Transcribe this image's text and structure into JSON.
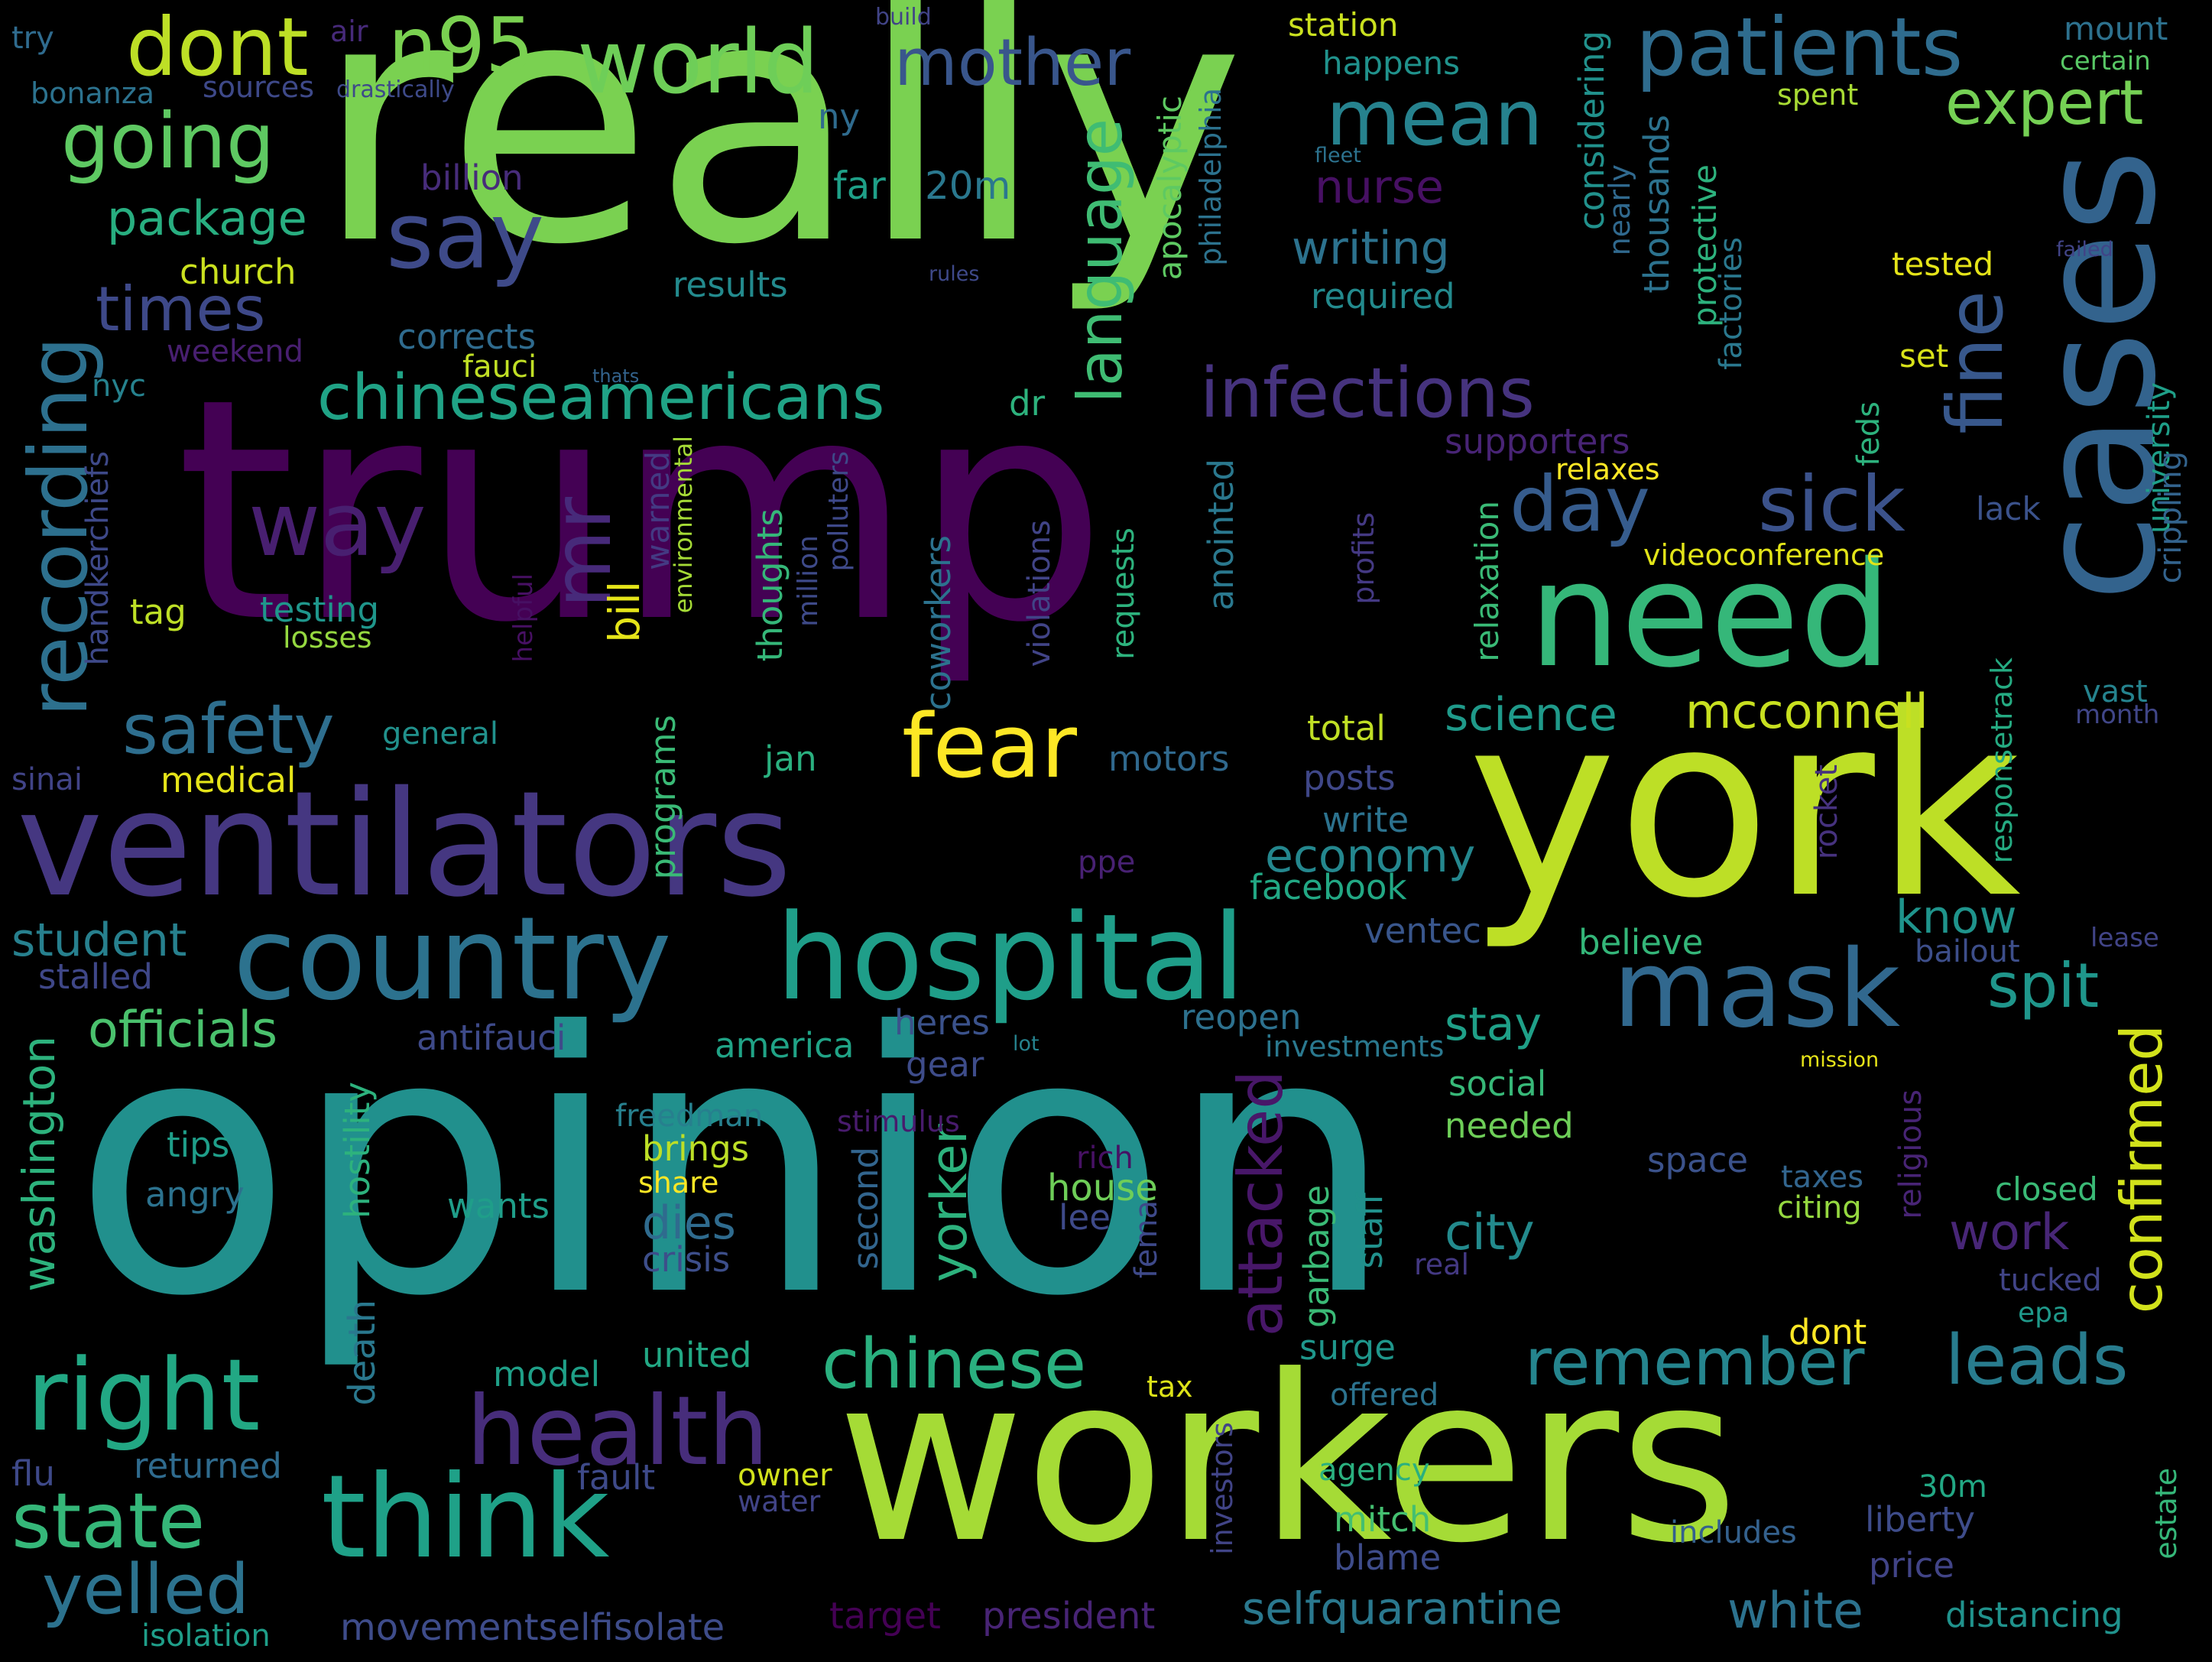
{
  "words": [
    {
      "text": "really",
      "color": "#7ad151"
    },
    {
      "text": "trump",
      "color": "#440154"
    },
    {
      "text": "opinion",
      "color": "#21908d"
    },
    {
      "text": "york",
      "color": "#bddf26"
    },
    {
      "text": "workers",
      "color": "#a5db36"
    },
    {
      "text": "ventilators",
      "color": "#453781"
    },
    {
      "text": "cases",
      "color": "#33638d"
    },
    {
      "text": "need",
      "color": "#35b779"
    },
    {
      "text": "country",
      "color": "#2c728e"
    },
    {
      "text": "hospital",
      "color": "#1f9e89"
    },
    {
      "text": "think",
      "color": "#1fa188"
    },
    {
      "text": "mask",
      "color": "#31688e"
    },
    {
      "text": "right",
      "color": "#22a884"
    },
    {
      "text": "health",
      "color": "#472d7b"
    },
    {
      "text": "recording",
      "color": "#2d708e"
    },
    {
      "text": "world",
      "color": "#6ece58"
    },
    {
      "text": "patients",
      "color": "#2f6c8e"
    },
    {
      "text": "going",
      "color": "#5ec962"
    },
    {
      "text": "dont",
      "color": "#bddf26"
    },
    {
      "text": "n95",
      "color": "#7ad151"
    },
    {
      "text": "fear",
      "color": "#fde725"
    },
    {
      "text": "state",
      "color": "#35b779"
    },
    {
      "text": "chineseamericans",
      "color": "#20a386"
    },
    {
      "text": "infections",
      "color": "#46337e"
    },
    {
      "text": "say",
      "color": "#3e4a89"
    },
    {
      "text": "way",
      "color": "#481f70"
    },
    {
      "text": "safety",
      "color": "#2e6e8e"
    },
    {
      "text": "mr",
      "color": "#472a7a"
    },
    {
      "text": "day",
      "color": "#365c8d"
    },
    {
      "text": "sick",
      "color": "#3b528b"
    },
    {
      "text": "fine",
      "color": "#38588c"
    },
    {
      "text": "remember",
      "color": "#25858e"
    },
    {
      "text": "chinese",
      "color": "#2ab07f"
    },
    {
      "text": "leads",
      "color": "#287c8e"
    },
    {
      "text": "yelled",
      "color": "#2c728e"
    },
    {
      "text": "mean",
      "color": "#26828e"
    },
    {
      "text": "mother",
      "color": "#39568c"
    },
    {
      "text": "expert",
      "color": "#75d054"
    },
    {
      "text": "language",
      "color": "#3fbc73"
    },
    {
      "text": "times",
      "color": "#3e4989"
    },
    {
      "text": "spit",
      "color": "#1f968b"
    },
    {
      "text": "confirmed",
      "color": "#d2e21b"
    },
    {
      "text": "attacked",
      "color": "#481769"
    },
    {
      "text": "selfquarantine",
      "color": "#2a788e"
    },
    {
      "text": "white",
      "color": "#2c728e"
    },
    {
      "text": "package",
      "color": "#28ae80"
    },
    {
      "text": "mcconnell",
      "color": "#c8e020"
    },
    {
      "text": "science",
      "color": "#1f9a8a"
    },
    {
      "text": "officials",
      "color": "#4ac16d"
    },
    {
      "text": "student",
      "color": "#27808e"
    },
    {
      "text": "economy",
      "color": "#24878e"
    },
    {
      "text": "washington",
      "color": "#2db27d"
    },
    {
      "text": "city",
      "color": "#238a8d"
    },
    {
      "text": "work",
      "color": "#482677"
    },
    {
      "text": "yorker",
      "color": "#2db27d"
    },
    {
      "text": "stay",
      "color": "#1fa088"
    },
    {
      "text": "know",
      "color": "#1f948c"
    },
    {
      "text": "nurse",
      "color": "#471063"
    },
    {
      "text": "writing",
      "color": "#2c728e"
    },
    {
      "text": "station",
      "color": "#cae11f"
    },
    {
      "text": "happens",
      "color": "#20928c"
    },
    {
      "text": "mount",
      "color": "#2d718e"
    },
    {
      "text": "certain",
      "color": "#58c765"
    },
    {
      "text": "spent",
      "color": "#a8db34"
    },
    {
      "text": "tested",
      "color": "#e5e419"
    },
    {
      "text": "set",
      "color": "#d8e219"
    },
    {
      "text": "feds",
      "color": "#2db27d"
    },
    {
      "text": "university",
      "color": "#1f9f88"
    },
    {
      "text": "crippling",
      "color": "#33638d"
    },
    {
      "text": "lack",
      "color": "#3b528b"
    },
    {
      "text": "relaxes",
      "color": "#fde725"
    },
    {
      "text": "videoconference",
      "color": "#e2e418"
    },
    {
      "text": "responsetrack",
      "color": "#25ab82"
    },
    {
      "text": "rocket",
      "color": "#46327e"
    },
    {
      "text": "vast",
      "color": "#25838e"
    },
    {
      "text": "month",
      "color": "#404688"
    },
    {
      "text": "bailout",
      "color": "#3d4e8a"
    },
    {
      "text": "lease",
      "color": "#414487"
    },
    {
      "text": "mission",
      "color": "#e7e419"
    },
    {
      "text": "investments",
      "color": "#2a788e"
    },
    {
      "text": "lot",
      "color": "#26828e"
    },
    {
      "text": "religious",
      "color": "#482475"
    },
    {
      "text": "closed",
      "color": "#3aba76"
    },
    {
      "text": "taxes",
      "color": "#32658e"
    },
    {
      "text": "citing",
      "color": "#95d840"
    },
    {
      "text": "space",
      "color": "#3b528b"
    },
    {
      "text": "tucked",
      "color": "#414487"
    },
    {
      "text": "epa",
      "color": "#1f998a"
    },
    {
      "text": "dont",
      "color": "#fde725"
    },
    {
      "text": "estate",
      "color": "#35b779"
    },
    {
      "text": "liberty",
      "color": "#3e4c8a"
    },
    {
      "text": "includes",
      "color": "#34618d"
    },
    {
      "text": "price",
      "color": "#414487"
    },
    {
      "text": "distancing",
      "color": "#20928c"
    },
    {
      "text": "30m",
      "color": "#22a884"
    },
    {
      "text": "real",
      "color": "#443983"
    },
    {
      "text": "social",
      "color": "#37b878"
    },
    {
      "text": "needed",
      "color": "#6ece58"
    },
    {
      "text": "staff",
      "color": "#21918c"
    },
    {
      "text": "garbage",
      "color": "#3aba76"
    },
    {
      "text": "surge",
      "color": "#1f968b"
    },
    {
      "text": "offered",
      "color": "#2c728e"
    },
    {
      "text": "agency",
      "color": "#2ab07f"
    },
    {
      "text": "mitch",
      "color": "#44bf70"
    },
    {
      "text": "blame",
      "color": "#3e4c8a"
    },
    {
      "text": "investors",
      "color": "#414487"
    },
    {
      "text": "tax",
      "color": "#dde318"
    },
    {
      "text": "president",
      "color": "#482475"
    },
    {
      "text": "target",
      "color": "#440154"
    },
    {
      "text": "fema",
      "color": "#3e4989"
    },
    {
      "text": "house",
      "color": "#6ece58"
    },
    {
      "text": "lee",
      "color": "#3e4a89"
    },
    {
      "text": "rich",
      "color": "#471164"
    },
    {
      "text": "heres",
      "color": "#3b528b"
    },
    {
      "text": "gear",
      "color": "#3e4c8a"
    },
    {
      "text": "america",
      "color": "#20a386"
    },
    {
      "text": "reopen",
      "color": "#2d718e"
    },
    {
      "text": "posts",
      "color": "#3f4788"
    },
    {
      "text": "write",
      "color": "#2c728e"
    },
    {
      "text": "total",
      "color": "#c0df25"
    },
    {
      "text": "facebook",
      "color": "#22a884"
    },
    {
      "text": "ventec",
      "color": "#39568c"
    },
    {
      "text": "believe",
      "color": "#34b679"
    },
    {
      "text": "ppe",
      "color": "#482173"
    },
    {
      "text": "motors",
      "color": "#30698e"
    },
    {
      "text": "jan",
      "color": "#2ab07f"
    },
    {
      "text": "second",
      "color": "#32658e"
    },
    {
      "text": "dies",
      "color": "#2f6b8e"
    },
    {
      "text": "crisis",
      "color": "#3d4e8a"
    },
    {
      "text": "freedman",
      "color": "#27808e"
    },
    {
      "text": "brings",
      "color": "#bddf26"
    },
    {
      "text": "share",
      "color": "#fde725"
    },
    {
      "text": "stimulus",
      "color": "#481b6d"
    },
    {
      "text": "wants",
      "color": "#1f9e89"
    },
    {
      "text": "tips",
      "color": "#1f9e89"
    },
    {
      "text": "angry",
      "color": "#2c728e"
    },
    {
      "text": "hostility",
      "color": "#2db27d"
    },
    {
      "text": "death",
      "color": "#2a788e"
    },
    {
      "text": "antifauci",
      "color": "#3e4a89"
    },
    {
      "text": "stalled",
      "color": "#3f4788"
    },
    {
      "text": "sinai",
      "color": "#414487"
    },
    {
      "text": "medical",
      "color": "#e5e419"
    },
    {
      "text": "general",
      "color": "#21918c"
    },
    {
      "text": "tag",
      "color": "#bddf26"
    },
    {
      "text": "testing",
      "color": "#1f968b"
    },
    {
      "text": "losses",
      "color": "#95d840"
    },
    {
      "text": "handkerchiefs",
      "color": "#3e4989"
    },
    {
      "text": "nyc",
      "color": "#26828e"
    },
    {
      "text": "weekend",
      "color": "#481f70"
    },
    {
      "text": "church",
      "color": "#cae11f"
    },
    {
      "text": "results",
      "color": "#238a8d"
    },
    {
      "text": "corrects",
      "color": "#2f6b8e"
    },
    {
      "text": "fauci",
      "color": "#c0df25"
    },
    {
      "text": "thats",
      "color": "#33638d"
    },
    {
      "text": "dr",
      "color": "#2db27d"
    },
    {
      "text": "billion",
      "color": "#472c7a"
    },
    {
      "text": "far",
      "color": "#1fa088"
    },
    {
      "text": "20m",
      "color": "#2a788e"
    },
    {
      "text": "rules",
      "color": "#3e4989"
    },
    {
      "text": "required",
      "color": "#238a8d"
    },
    {
      "text": "bill",
      "color": "#e5e419"
    },
    {
      "text": "warned",
      "color": "#443a83"
    },
    {
      "text": "environmental",
      "color": "#a5db36"
    },
    {
      "text": "helpful",
      "color": "#471063"
    },
    {
      "text": "thoughts",
      "color": "#35b779"
    },
    {
      "text": "million",
      "color": "#3e4a89"
    },
    {
      "text": "polluters",
      "color": "#3e4989"
    },
    {
      "text": "programs",
      "color": "#3aba76"
    },
    {
      "text": "coworkers",
      "color": "#2c728e"
    },
    {
      "text": "violations",
      "color": "#414487"
    },
    {
      "text": "requests",
      "color": "#2db27d"
    },
    {
      "text": "anointed",
      "color": "#2a788e"
    },
    {
      "text": "profits",
      "color": "#443983"
    },
    {
      "text": "apocalyptic",
      "color": "#5ec962"
    },
    {
      "text": "philadelphia",
      "color": "#2c728e"
    },
    {
      "text": "considering",
      "color": "#21918c"
    },
    {
      "text": "nearly",
      "color": "#30698e"
    },
    {
      "text": "thousands",
      "color": "#2c728e"
    },
    {
      "text": "protective",
      "color": "#2db27d"
    },
    {
      "text": "factories",
      "color": "#2a788e"
    },
    {
      "text": "fleet",
      "color": "#2c728e"
    },
    {
      "text": "failed",
      "color": "#414487"
    },
    {
      "text": "supporters",
      "color": "#482475"
    },
    {
      "text": "relaxation",
      "color": "#3aba76"
    },
    {
      "text": "try",
      "color": "#2f6b8e"
    },
    {
      "text": "air",
      "color": "#472a7a"
    },
    {
      "text": "build",
      "color": "#414487"
    },
    {
      "text": "bonanza",
      "color": "#2c728e"
    },
    {
      "text": "sources",
      "color": "#3e4989"
    },
    {
      "text": "drastically",
      "color": "#3e4a89"
    },
    {
      "text": "ny",
      "color": "#2f6b8e"
    },
    {
      "text": "flu",
      "color": "#3e4989"
    },
    {
      "text": "returned",
      "color": "#2f6b8e"
    },
    {
      "text": "fault",
      "color": "#3e4a89"
    },
    {
      "text": "owner",
      "color": "#d2e21b"
    },
    {
      "text": "water",
      "color": "#414487"
    },
    {
      "text": "model",
      "color": "#1fa088"
    },
    {
      "text": "united",
      "color": "#22a884"
    },
    {
      "text": "movementselfisolate",
      "color": "#3e4c8a"
    },
    {
      "text": "isolation",
      "color": "#1f9e89"
    }
  ]
}
